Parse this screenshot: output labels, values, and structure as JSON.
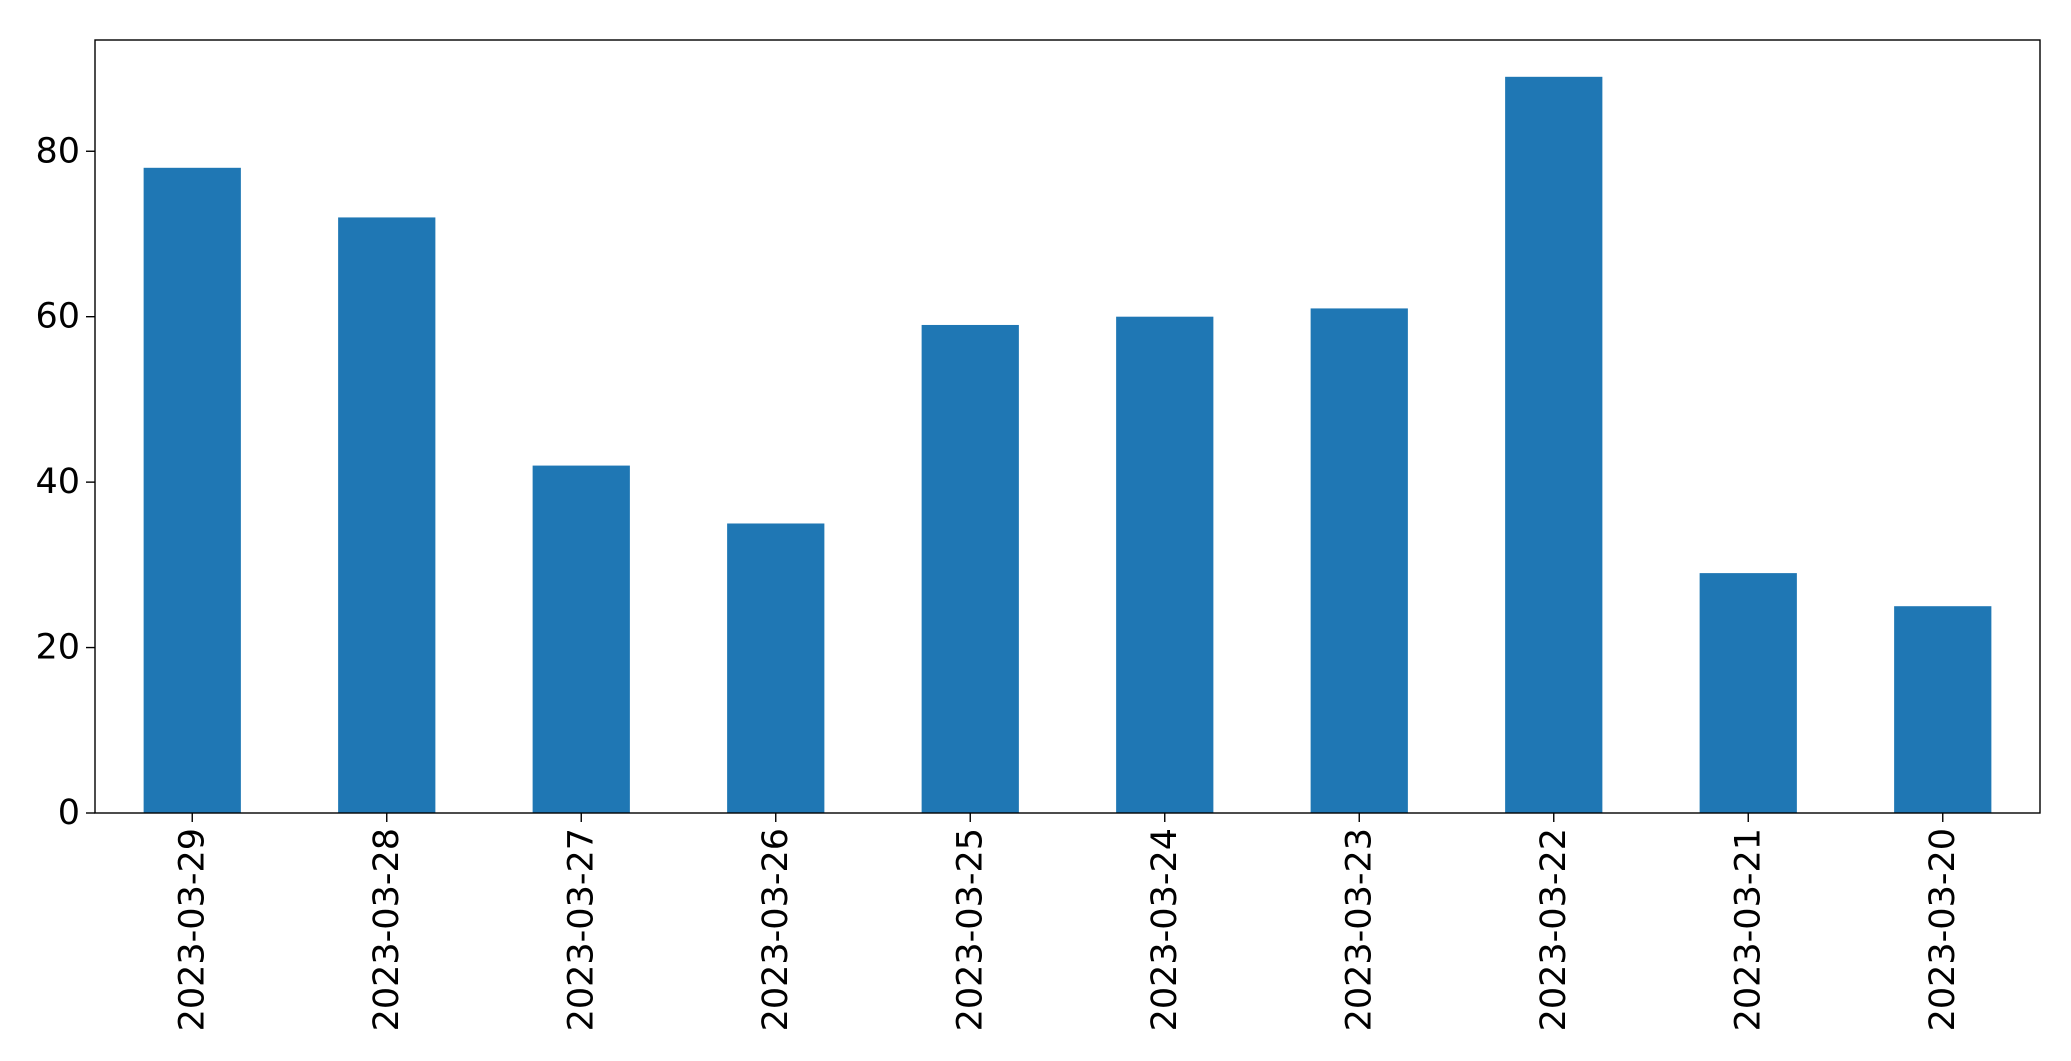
{
  "chart_data": {
    "type": "bar",
    "title": "",
    "xlabel": "",
    "ylabel": "",
    "categories": [
      "2023-03-29",
      "2023-03-28",
      "2023-03-27",
      "2023-03-26",
      "2023-03-25",
      "2023-03-24",
      "2023-03-23",
      "2023-03-22",
      "2023-03-21",
      "2023-03-20"
    ],
    "values": [
      78,
      72,
      42,
      35,
      59,
      60,
      61,
      89,
      29,
      25
    ],
    "ylim": [
      0,
      93.45
    ],
    "yticks": [
      0,
      20,
      40,
      60,
      80
    ],
    "ytick_labels": [
      "0",
      "20",
      "40",
      "60",
      "80"
    ],
    "bar_color": "#1f77b4",
    "grid": false,
    "legend": "none"
  }
}
